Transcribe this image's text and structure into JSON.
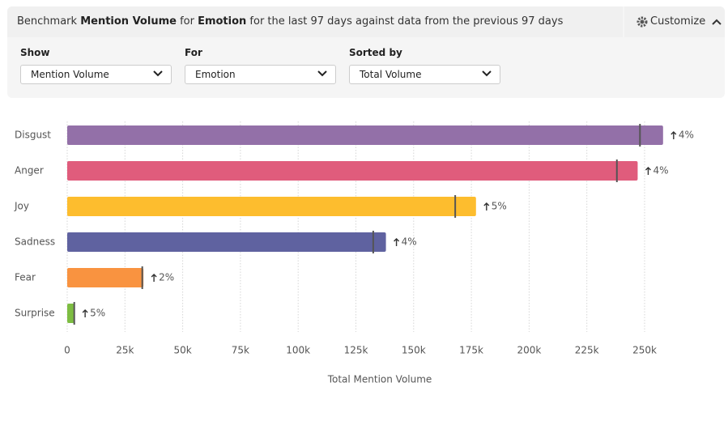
{
  "header": {
    "title_parts": [
      "Benchmark ",
      "Mention Volume",
      " for ",
      "Emotion",
      " for the last 97 days against data from the previous 97 days"
    ],
    "customize": "Customize"
  },
  "controls": [
    {
      "label": "Show",
      "value": "Mention Volume"
    },
    {
      "label": "For",
      "value": "Emotion"
    },
    {
      "label": "Sorted by",
      "value": "Total Volume"
    }
  ],
  "chart_data": {
    "type": "bar",
    "orientation": "horizontal",
    "categories": [
      "Disgust",
      "Anger",
      "Joy",
      "Sadness",
      "Fear",
      "Surprise"
    ],
    "values": [
      258000,
      247000,
      177000,
      138000,
      33000,
      3200
    ],
    "previous": [
      248000,
      238000,
      168000,
      132500,
      32500,
      3050
    ],
    "change_labels": [
      "4%",
      "4%",
      "5%",
      "4%",
      "2%",
      "5%"
    ],
    "colors": [
      "#9370a8",
      "#e05c7c",
      "#fdbd2e",
      "#5f62a0",
      "#f99340",
      "#7dbd42"
    ],
    "xlabel": "Total Mention Volume",
    "xlim": [
      0,
      262500
    ],
    "xticks": [
      0,
      {
        "value": 25000,
        "label": "25k"
      },
      {
        "value": 50000,
        "label": "50k"
      },
      {
        "value": 75000,
        "label": "75k"
      },
      {
        "value": 100000,
        "label": "100k"
      },
      {
        "value": 125000,
        "label": "125k"
      },
      {
        "value": 150000,
        "label": "150k"
      },
      {
        "value": 175000,
        "label": "175k"
      },
      {
        "value": 200000,
        "label": "200k"
      },
      {
        "value": 225000,
        "label": "225k"
      },
      {
        "value": 250000,
        "label": "250k"
      }
    ],
    "grid": true
  }
}
